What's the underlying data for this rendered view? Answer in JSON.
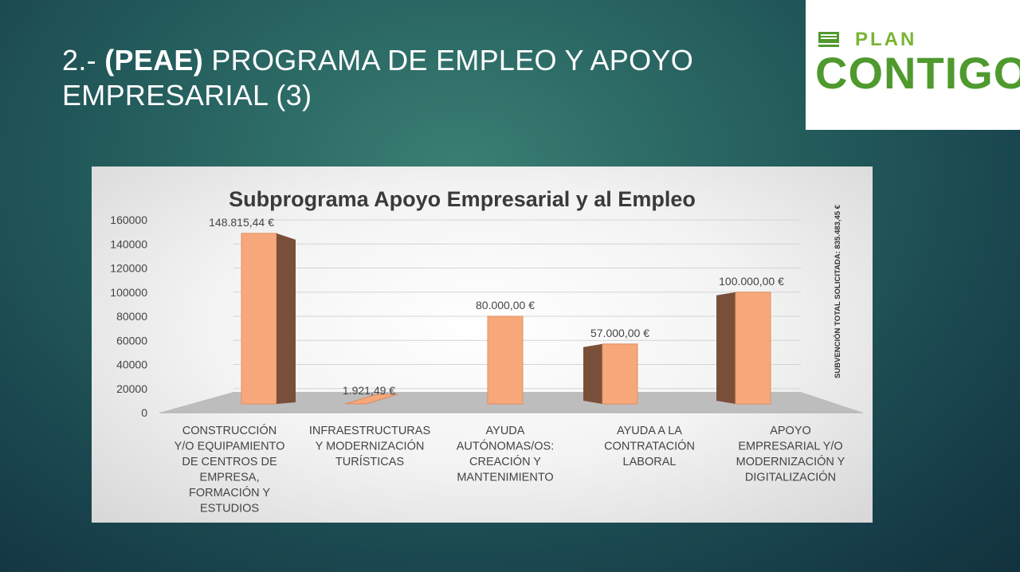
{
  "slide": {
    "title_prefix": "2.- ",
    "title_bold": "(PEAE)",
    "title_rest": " PROGRAMA DE EMPLEO Y APOYO EMPRESARIAL (3)"
  },
  "logo": {
    "word_plan": "PLAN",
    "word_contigo": "CONTIGO",
    "brand_color": "#4f9a2e"
  },
  "chart_data": {
    "type": "bar",
    "title": "Subprograma Apoyo Empresarial y al Empleo",
    "side_note": "SUBVENCIÓN   TOTAL SOLICITADA: 835.483,45 €",
    "categories": [
      [
        "CONSTRUCCIÓN",
        "Y/O EQUIPAMIENTO",
        "DE CENTROS DE",
        "EMPRESA,",
        "FORMACIÓN Y",
        "ESTUDIOS"
      ],
      [
        "INFRAESTRUCTURAS",
        "Y MODERNIZACIÓN",
        "TURÍSTICAS"
      ],
      [
        "AYUDA",
        "AUTÓNOMAS/OS:",
        "CREACIÓN Y",
        "MANTENIMIENTO"
      ],
      [
        "AYUDA A LA",
        "CONTRATACIÓN",
        "LABORAL"
      ],
      [
        "APOYO",
        "EMPRESARIAL Y/O",
        "MODERNIZACIÓN Y",
        "DIGITALIZACIÓN"
      ]
    ],
    "values": [
      148815.44,
      1921.49,
      80000.0,
      57000.0,
      100000.0
    ],
    "data_labels": [
      "148.815,44 €",
      "1.921,49 €",
      "80.000,00 €",
      "57.000,00 €",
      "100.000,00 €"
    ],
    "y_ticks": [
      "0",
      "20000",
      "40000",
      "60000",
      "80000",
      "100000",
      "120000",
      "140000",
      "160000"
    ],
    "ylim": [
      0,
      160000
    ],
    "grid": true,
    "bar_color": "#f7a87a",
    "bar_side_color": "#7a4f3a",
    "floor_color": "#bdbdbd"
  }
}
